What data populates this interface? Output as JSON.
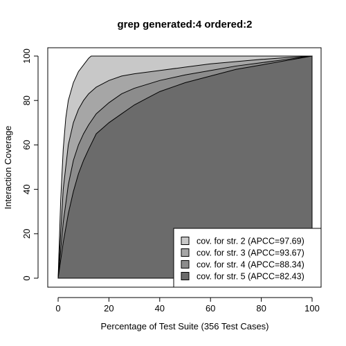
{
  "chart_data": {
    "type": "area",
    "title": "grep generated:4 ordered:2",
    "xlabel": "Percentage of Test Suite (356 Test Cases)",
    "ylabel": "Interaction Coverage",
    "xlim": [
      0,
      100
    ],
    "ylim": [
      0,
      100
    ],
    "x_ticks": [
      0,
      20,
      40,
      60,
      80,
      100
    ],
    "y_ticks": [
      0,
      20,
      40,
      60,
      80,
      100
    ],
    "grid": false,
    "legend_position": "bottom-right",
    "series": [
      {
        "name": "cov. for str. 2 (APCC=97.69)",
        "color": "#c8c8c8",
        "x": [
          0,
          1,
          2,
          3,
          4,
          6,
          8,
          10,
          12,
          13,
          20,
          40,
          60,
          80,
          100
        ],
        "y": [
          0,
          35,
          58,
          72,
          80,
          88,
          93,
          96,
          99,
          100,
          100,
          100,
          100,
          100,
          100
        ]
      },
      {
        "name": "cov. for str. 3 (APCC=93.67)",
        "color": "#a6a6a6",
        "x": [
          0,
          2,
          4,
          6,
          8,
          10,
          12,
          15,
          20,
          25,
          30,
          40,
          50,
          60,
          70,
          80,
          90,
          100
        ],
        "y": [
          0,
          40,
          60,
          70,
          76,
          80,
          83,
          86,
          89,
          91,
          92,
          93.5,
          95,
          96.5,
          97.5,
          98.5,
          99.3,
          100
        ]
      },
      {
        "name": "cov. for str. 4 (APCC=88.34)",
        "color": "#8c8c8c",
        "x": [
          0,
          2,
          4,
          6,
          8,
          10,
          12,
          15,
          20,
          25,
          30,
          40,
          50,
          60,
          70,
          80,
          90,
          100
        ],
        "y": [
          0,
          25,
          42,
          53,
          60,
          65,
          69,
          74,
          79,
          83,
          85.5,
          89,
          91.5,
          93.5,
          95.5,
          97,
          98.5,
          100
        ]
      },
      {
        "name": "cov. for str. 5 (APCC=82.43)",
        "color": "#6b6b6b",
        "x": [
          0,
          2,
          4,
          6,
          8,
          10,
          12,
          15,
          18,
          20,
          25,
          30,
          35,
          40,
          50,
          60,
          70,
          80,
          90,
          100
        ],
        "y": [
          0,
          16,
          29,
          39,
          47,
          53,
          58,
          65,
          68,
          70,
          74,
          78,
          81,
          84,
          88,
          91,
          94,
          96,
          98,
          100
        ]
      }
    ]
  }
}
